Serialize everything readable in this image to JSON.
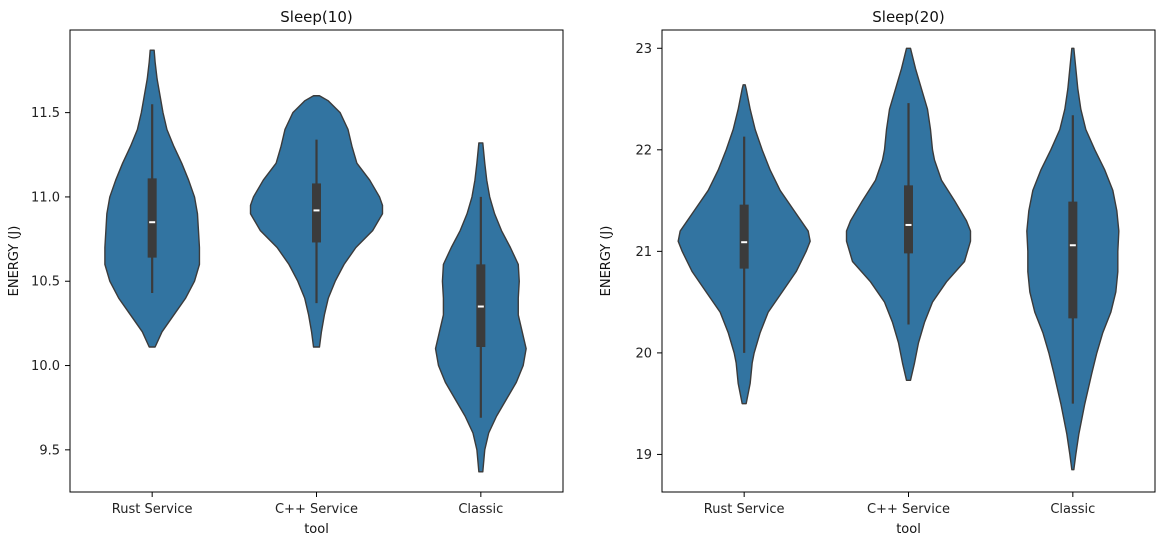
{
  "chart_data": [
    {
      "type": "violin",
      "title": "Sleep(10)",
      "xlabel": "tool",
      "ylabel": "ENERGY (J)",
      "categories": [
        "Rust Service",
        "C++ Service",
        "Classic"
      ],
      "ylim": [
        9.25,
        11.99
      ],
      "yticks": [
        9.5,
        10.0,
        10.5,
        11.0,
        11.5
      ],
      "ytick_labels": [
        "9.5",
        "10.0",
        "10.5",
        "11.0",
        "11.5"
      ],
      "violin_color": "#3274a1",
      "edge_color": "#3b3b3b",
      "violins": [
        {
          "name": "Rust Service",
          "min": 10.11,
          "max": 11.87,
          "whisker_low": 10.43,
          "q1": 10.64,
          "median": 10.85,
          "q3": 11.11,
          "whisker_high": 11.55,
          "density": [
            [
              10.11,
              3
            ],
            [
              10.2,
              10
            ],
            [
              10.3,
              22
            ],
            [
              10.4,
              34
            ],
            [
              10.5,
              43
            ],
            [
              10.6,
              48
            ],
            [
              10.7,
              48
            ],
            [
              10.8,
              47
            ],
            [
              10.9,
              46
            ],
            [
              11.0,
              43
            ],
            [
              11.1,
              37
            ],
            [
              11.2,
              30
            ],
            [
              11.3,
              22
            ],
            [
              11.4,
              15
            ],
            [
              11.5,
              11
            ],
            [
              11.6,
              8
            ],
            [
              11.7,
              5
            ],
            [
              11.8,
              3
            ],
            [
              11.87,
              2
            ]
          ]
        },
        {
          "name": "C++ Service",
          "min": 10.11,
          "max": 11.6,
          "whisker_low": 10.37,
          "q1": 10.73,
          "median": 10.92,
          "q3": 11.08,
          "whisker_high": 11.34,
          "density": [
            [
              10.11,
              3
            ],
            [
              10.2,
              5
            ],
            [
              10.3,
              8
            ],
            [
              10.4,
              12
            ],
            [
              10.5,
              19
            ],
            [
              10.6,
              28
            ],
            [
              10.7,
              40
            ],
            [
              10.8,
              57
            ],
            [
              10.9,
              67
            ],
            [
              10.95,
              67
            ],
            [
              11.0,
              64
            ],
            [
              11.1,
              54
            ],
            [
              11.2,
              41
            ],
            [
              11.3,
              36
            ],
            [
              11.4,
              32
            ],
            [
              11.5,
              24
            ],
            [
              11.57,
              12
            ],
            [
              11.6,
              3
            ]
          ]
        },
        {
          "name": "Classic",
          "min": 9.37,
          "max": 11.32,
          "whisker_low": 9.69,
          "q1": 10.11,
          "median": 10.35,
          "q3": 10.6,
          "whisker_high": 11.0,
          "density": [
            [
              9.37,
              2
            ],
            [
              9.5,
              4
            ],
            [
              9.6,
              8
            ],
            [
              9.7,
              16
            ],
            [
              9.8,
              26
            ],
            [
              9.9,
              36
            ],
            [
              10.0,
              43
            ],
            [
              10.1,
              46
            ],
            [
              10.2,
              42
            ],
            [
              10.3,
              38
            ],
            [
              10.4,
              38
            ],
            [
              10.5,
              39
            ],
            [
              10.6,
              38
            ],
            [
              10.7,
              30
            ],
            [
              10.8,
              21
            ],
            [
              10.9,
              14
            ],
            [
              11.0,
              9
            ],
            [
              11.1,
              6
            ],
            [
              11.2,
              4
            ],
            [
              11.32,
              2
            ]
          ]
        }
      ]
    },
    {
      "type": "violin",
      "title": "Sleep(20)",
      "xlabel": "tool",
      "ylabel": "ENERGY (J)",
      "categories": [
        "Rust Service",
        "C++ Service",
        "Classic"
      ],
      "ylim": [
        18.63,
        23.18
      ],
      "yticks": [
        19,
        20,
        21,
        22,
        23
      ],
      "ytick_labels": [
        "19",
        "20",
        "21",
        "22",
        "23"
      ],
      "violin_color": "#3274a1",
      "edge_color": "#3b3b3b",
      "violins": [
        {
          "name": "Rust Service",
          "min": 19.5,
          "max": 22.64,
          "whisker_low": 20.0,
          "q1": 20.83,
          "median": 21.09,
          "q3": 21.46,
          "whisker_high": 22.13,
          "density": [
            [
              19.5,
              2
            ],
            [
              19.7,
              6
            ],
            [
              19.9,
              8
            ],
            [
              20.0,
              10
            ],
            [
              20.2,
              16
            ],
            [
              20.4,
              24
            ],
            [
              20.6,
              38
            ],
            [
              20.8,
              52
            ],
            [
              21.0,
              62
            ],
            [
              21.1,
              66
            ],
            [
              21.2,
              64
            ],
            [
              21.4,
              50
            ],
            [
              21.6,
              36
            ],
            [
              21.8,
              26
            ],
            [
              22.0,
              18
            ],
            [
              22.2,
              11
            ],
            [
              22.4,
              6
            ],
            [
              22.6,
              2
            ],
            [
              22.64,
              1
            ]
          ]
        },
        {
          "name": "C++ Service",
          "min": 19.73,
          "max": 23.0,
          "whisker_low": 20.28,
          "q1": 20.98,
          "median": 21.26,
          "q3": 21.65,
          "whisker_high": 22.46,
          "density": [
            [
              19.73,
              2
            ],
            [
              19.9,
              6
            ],
            [
              20.1,
              10
            ],
            [
              20.3,
              16
            ],
            [
              20.5,
              24
            ],
            [
              20.7,
              38
            ],
            [
              20.9,
              56
            ],
            [
              21.1,
              62
            ],
            [
              21.2,
              62
            ],
            [
              21.3,
              58
            ],
            [
              21.5,
              46
            ],
            [
              21.7,
              33
            ],
            [
              21.9,
              26
            ],
            [
              22.0,
              24
            ],
            [
              22.2,
              22
            ],
            [
              22.4,
              19
            ],
            [
              22.6,
              13
            ],
            [
              22.8,
              7
            ],
            [
              23.0,
              2
            ]
          ]
        },
        {
          "name": "Classic",
          "min": 18.85,
          "max": 23.0,
          "whisker_low": 19.5,
          "q1": 20.34,
          "median": 21.06,
          "q3": 21.49,
          "whisker_high": 22.34,
          "density": [
            [
              18.85,
              1
            ],
            [
              19.0,
              3
            ],
            [
              19.2,
              6
            ],
            [
              19.5,
              12
            ],
            [
              19.8,
              19
            ],
            [
              20.0,
              24
            ],
            [
              20.2,
              30
            ],
            [
              20.4,
              38
            ],
            [
              20.6,
              43
            ],
            [
              20.8,
              45
            ],
            [
              21.0,
              45
            ],
            [
              21.2,
              46
            ],
            [
              21.4,
              44
            ],
            [
              21.6,
              40
            ],
            [
              21.8,
              32
            ],
            [
              22.0,
              22
            ],
            [
              22.2,
              13
            ],
            [
              22.4,
              8
            ],
            [
              22.6,
              5
            ],
            [
              22.8,
              3
            ],
            [
              23.0,
              1
            ]
          ]
        }
      ]
    }
  ]
}
